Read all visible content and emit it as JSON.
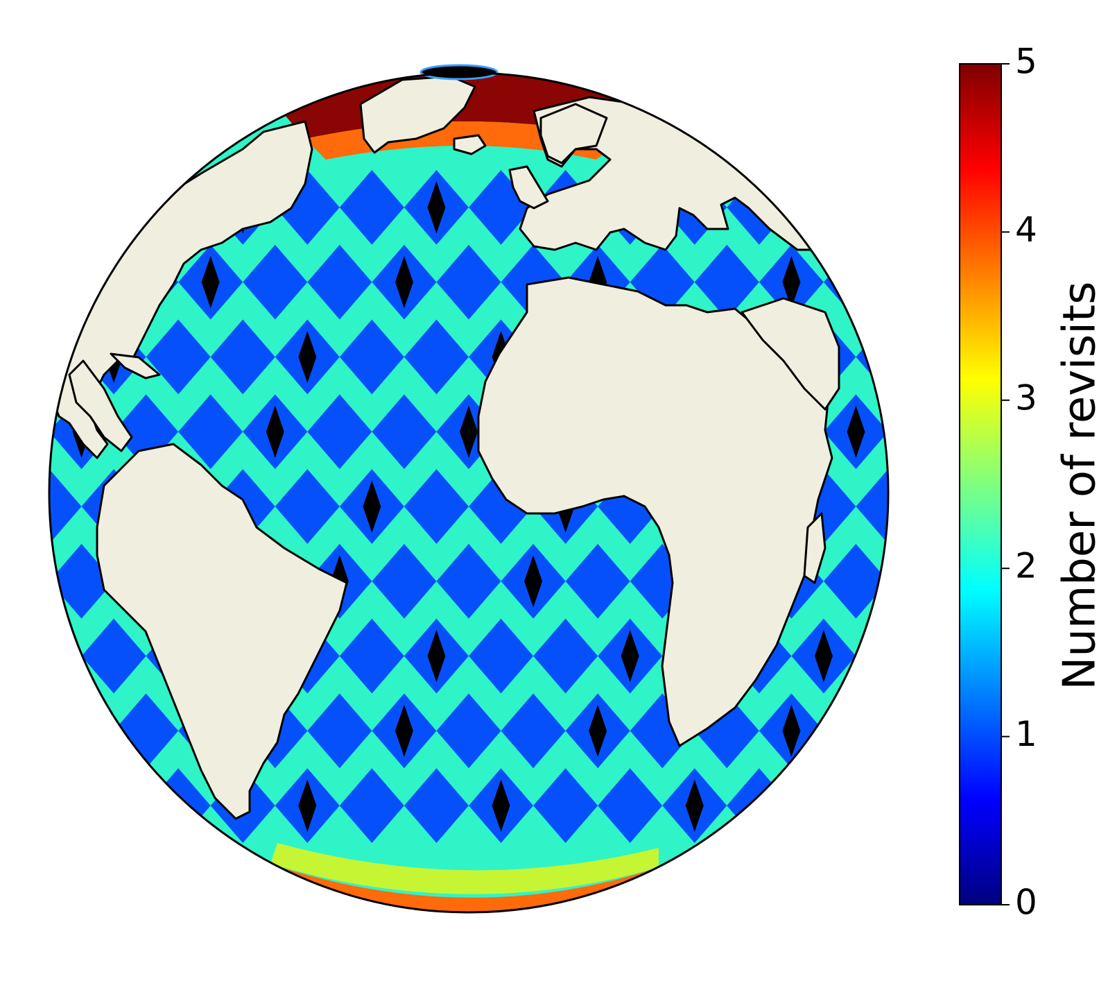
{
  "map": {
    "projection": "orthographic",
    "land_color": "#f0efdf",
    "coastline_color": "#000000",
    "pole_hole_color": "#000000",
    "category_colors": {
      "zero": "#000000",
      "one": "#0650fb",
      "two": "#2ef4c8",
      "three": "#c6f534",
      "four": "#ff6a0b",
      "five": "#8b0505"
    }
  },
  "colorbar": {
    "label": "Number of revisits",
    "colormap": "jet",
    "range": [
      0,
      5
    ],
    "ticks": [
      "0",
      "1",
      "2",
      "3",
      "4",
      "5"
    ],
    "stops": [
      "#00007f",
      "#0000ff",
      "#007fff",
      "#00ffff",
      "#7fff7f",
      "#ffff00",
      "#ff7f00",
      "#ff0000",
      "#7f0000"
    ]
  }
}
